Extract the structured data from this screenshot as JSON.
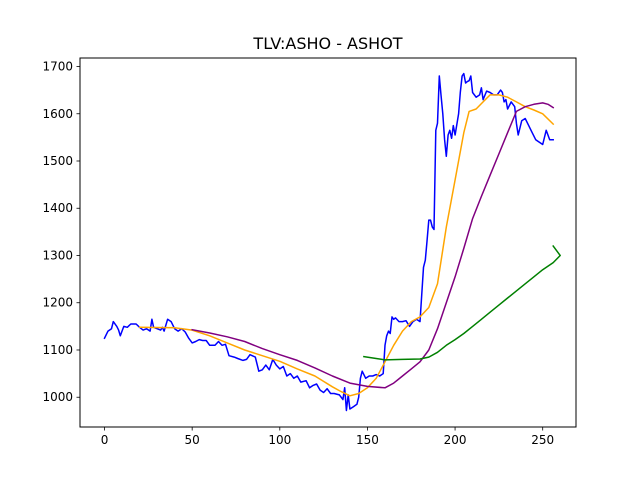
{
  "chart_data": {
    "type": "line",
    "title": "TLV:ASHO - ASHOT",
    "xlabel": "",
    "ylabel": "",
    "xlim": [
      -14,
      269
    ],
    "ylim": [
      937,
      1718
    ],
    "x_ticks": [
      0,
      50,
      100,
      150,
      200,
      250
    ],
    "y_ticks": [
      1000,
      1100,
      1200,
      1300,
      1400,
      1500,
      1600,
      1700
    ],
    "grid": false,
    "legend": "none",
    "series": [
      {
        "color": "#0000ff",
        "points": [
          [
            0,
            1125
          ],
          [
            2,
            1140
          ],
          [
            4,
            1145
          ],
          [
            5,
            1160
          ],
          [
            7,
            1150
          ],
          [
            8,
            1142
          ],
          [
            9,
            1130
          ],
          [
            11,
            1150
          ],
          [
            13,
            1148
          ],
          [
            15,
            1155
          ],
          [
            18,
            1155
          ],
          [
            20,
            1148
          ],
          [
            22,
            1142
          ],
          [
            24,
            1145
          ],
          [
            26,
            1140
          ],
          [
            27,
            1165
          ],
          [
            28,
            1148
          ],
          [
            30,
            1145
          ],
          [
            32,
            1142
          ],
          [
            33,
            1148
          ],
          [
            34,
            1140
          ],
          [
            36,
            1165
          ],
          [
            38,
            1160
          ],
          [
            40,
            1145
          ],
          [
            42,
            1140
          ],
          [
            44,
            1145
          ],
          [
            46,
            1138
          ],
          [
            48,
            1125
          ],
          [
            50,
            1115
          ],
          [
            52,
            1118
          ],
          [
            54,
            1122
          ],
          [
            56,
            1120
          ],
          [
            58,
            1120
          ],
          [
            60,
            1110
          ],
          [
            63,
            1110
          ],
          [
            65,
            1118
          ],
          [
            67,
            1110
          ],
          [
            69,
            1112
          ],
          [
            71,
            1088
          ],
          [
            74,
            1085
          ],
          [
            76,
            1082
          ],
          [
            79,
            1078
          ],
          [
            81,
            1080
          ],
          [
            83,
            1090
          ],
          [
            86,
            1085
          ],
          [
            88,
            1055
          ],
          [
            90,
            1058
          ],
          [
            92,
            1068
          ],
          [
            94,
            1058
          ],
          [
            96,
            1080
          ],
          [
            98,
            1068
          ],
          [
            100,
            1060
          ],
          [
            102,
            1065
          ],
          [
            104,
            1045
          ],
          [
            106,
            1050
          ],
          [
            108,
            1040
          ],
          [
            110,
            1045
          ],
          [
            112,
            1032
          ],
          [
            115,
            1035
          ],
          [
            117,
            1020
          ],
          [
            119,
            1025
          ],
          [
            121,
            1028
          ],
          [
            123,
            1015
          ],
          [
            125,
            1010
          ],
          [
            127,
            1018
          ],
          [
            129,
            1008
          ],
          [
            131,
            1008
          ],
          [
            134,
            1005
          ],
          [
            136,
            995
          ],
          [
            137,
            1020
          ],
          [
            138,
            972
          ],
          [
            139,
            1005
          ],
          [
            140,
            975
          ],
          [
            142,
            980
          ],
          [
            144,
            985
          ],
          [
            145,
            1000
          ],
          [
            146,
            1040
          ],
          [
            147,
            1055
          ],
          [
            149,
            1040
          ],
          [
            151,
            1045
          ],
          [
            153,
            1045
          ],
          [
            155,
            1048
          ],
          [
            157,
            1045
          ],
          [
            159,
            1050
          ],
          [
            160,
            1110
          ],
          [
            161,
            1130
          ],
          [
            162,
            1140
          ],
          [
            163,
            1135
          ],
          [
            164,
            1170
          ],
          [
            165,
            1165
          ],
          [
            166,
            1168
          ],
          [
            168,
            1160
          ],
          [
            170,
            1160
          ],
          [
            172,
            1162
          ],
          [
            174,
            1150
          ],
          [
            176,
            1160
          ],
          [
            178,
            1165
          ],
          [
            180,
            1160
          ],
          [
            182,
            1275
          ],
          [
            183,
            1290
          ],
          [
            184,
            1330
          ],
          [
            185,
            1375
          ],
          [
            186,
            1375
          ],
          [
            187,
            1360
          ],
          [
            188,
            1355
          ],
          [
            189,
            1565
          ],
          [
            190,
            1580
          ],
          [
            191,
            1680
          ],
          [
            192,
            1640
          ],
          [
            193,
            1600
          ],
          [
            194,
            1545
          ],
          [
            195,
            1510
          ],
          [
            196,
            1555
          ],
          [
            197,
            1565
          ],
          [
            198,
            1548
          ],
          [
            199,
            1575
          ],
          [
            200,
            1555
          ],
          [
            202,
            1600
          ],
          [
            203,
            1645
          ],
          [
            204,
            1680
          ],
          [
            205,
            1685
          ],
          [
            206,
            1665
          ],
          [
            207,
            1668
          ],
          [
            208,
            1670
          ],
          [
            209,
            1680
          ],
          [
            210,
            1645
          ],
          [
            212,
            1635
          ],
          [
            214,
            1640
          ],
          [
            215,
            1655
          ],
          [
            216,
            1630
          ],
          [
            218,
            1648
          ],
          [
            220,
            1645
          ],
          [
            222,
            1640
          ],
          [
            224,
            1640
          ],
          [
            226,
            1650
          ],
          [
            227,
            1645
          ],
          [
            228,
            1625
          ],
          [
            229,
            1630
          ],
          [
            230,
            1610
          ],
          [
            232,
            1625
          ],
          [
            234,
            1615
          ],
          [
            235,
            1580
          ],
          [
            236,
            1555
          ],
          [
            238,
            1585
          ],
          [
            240,
            1590
          ],
          [
            242,
            1575
          ],
          [
            244,
            1560
          ],
          [
            246,
            1545
          ],
          [
            248,
            1540
          ],
          [
            250,
            1535
          ],
          [
            252,
            1565
          ],
          [
            254,
            1545
          ],
          [
            256,
            1545
          ]
        ]
      },
      {
        "color": "#ffa500",
        "points": [
          [
            20,
            1148
          ],
          [
            40,
            1147
          ],
          [
            50,
            1142
          ],
          [
            60,
            1130
          ],
          [
            70,
            1115
          ],
          [
            80,
            1100
          ],
          [
            90,
            1088
          ],
          [
            100,
            1076
          ],
          [
            110,
            1060
          ],
          [
            120,
            1045
          ],
          [
            130,
            1022
          ],
          [
            135,
            1012
          ],
          [
            140,
            1003
          ],
          [
            145,
            1008
          ],
          [
            150,
            1020
          ],
          [
            155,
            1040
          ],
          [
            160,
            1075
          ],
          [
            165,
            1110
          ],
          [
            170,
            1140
          ],
          [
            175,
            1160
          ],
          [
            180,
            1170
          ],
          [
            185,
            1190
          ],
          [
            190,
            1240
          ],
          [
            195,
            1360
          ],
          [
            200,
            1460
          ],
          [
            205,
            1560
          ],
          [
            208,
            1605
          ],
          [
            212,
            1610
          ],
          [
            216,
            1625
          ],
          [
            220,
            1640
          ],
          [
            225,
            1640
          ],
          [
            230,
            1635
          ],
          [
            235,
            1625
          ],
          [
            240,
            1615
          ],
          [
            245,
            1608
          ],
          [
            250,
            1600
          ],
          [
            256,
            1578
          ]
        ]
      },
      {
        "color": "#800080",
        "points": [
          [
            50,
            1143
          ],
          [
            60,
            1136
          ],
          [
            70,
            1128
          ],
          [
            80,
            1118
          ],
          [
            90,
            1103
          ],
          [
            100,
            1090
          ],
          [
            110,
            1078
          ],
          [
            120,
            1062
          ],
          [
            130,
            1045
          ],
          [
            140,
            1030
          ],
          [
            150,
            1023
          ],
          [
            160,
            1020
          ],
          [
            165,
            1030
          ],
          [
            170,
            1045
          ],
          [
            175,
            1060
          ],
          [
            180,
            1075
          ],
          [
            185,
            1100
          ],
          [
            190,
            1145
          ],
          [
            195,
            1200
          ],
          [
            200,
            1255
          ],
          [
            205,
            1315
          ],
          [
            210,
            1378
          ],
          [
            215,
            1425
          ],
          [
            220,
            1470
          ],
          [
            225,
            1515
          ],
          [
            230,
            1560
          ],
          [
            235,
            1605
          ],
          [
            240,
            1615
          ],
          [
            245,
            1620
          ],
          [
            250,
            1623
          ],
          [
            253,
            1620
          ],
          [
            256,
            1613
          ]
        ]
      },
      {
        "color": "#008000",
        "points": [
          [
            148,
            1086
          ],
          [
            155,
            1082
          ],
          [
            160,
            1079
          ],
          [
            170,
            1080
          ],
          [
            180,
            1081
          ],
          [
            185,
            1085
          ],
          [
            190,
            1095
          ],
          [
            195,
            1110
          ],
          [
            200,
            1122
          ],
          [
            205,
            1135
          ],
          [
            210,
            1150
          ],
          [
            215,
            1165
          ],
          [
            220,
            1180
          ],
          [
            225,
            1195
          ],
          [
            230,
            1210
          ],
          [
            235,
            1225
          ],
          [
            240,
            1240
          ],
          [
            245,
            1255
          ],
          [
            250,
            1270
          ],
          [
            256,
            1285
          ],
          [
            260,
            1300
          ],
          [
            256,
            1320
          ]
        ]
      }
    ]
  }
}
